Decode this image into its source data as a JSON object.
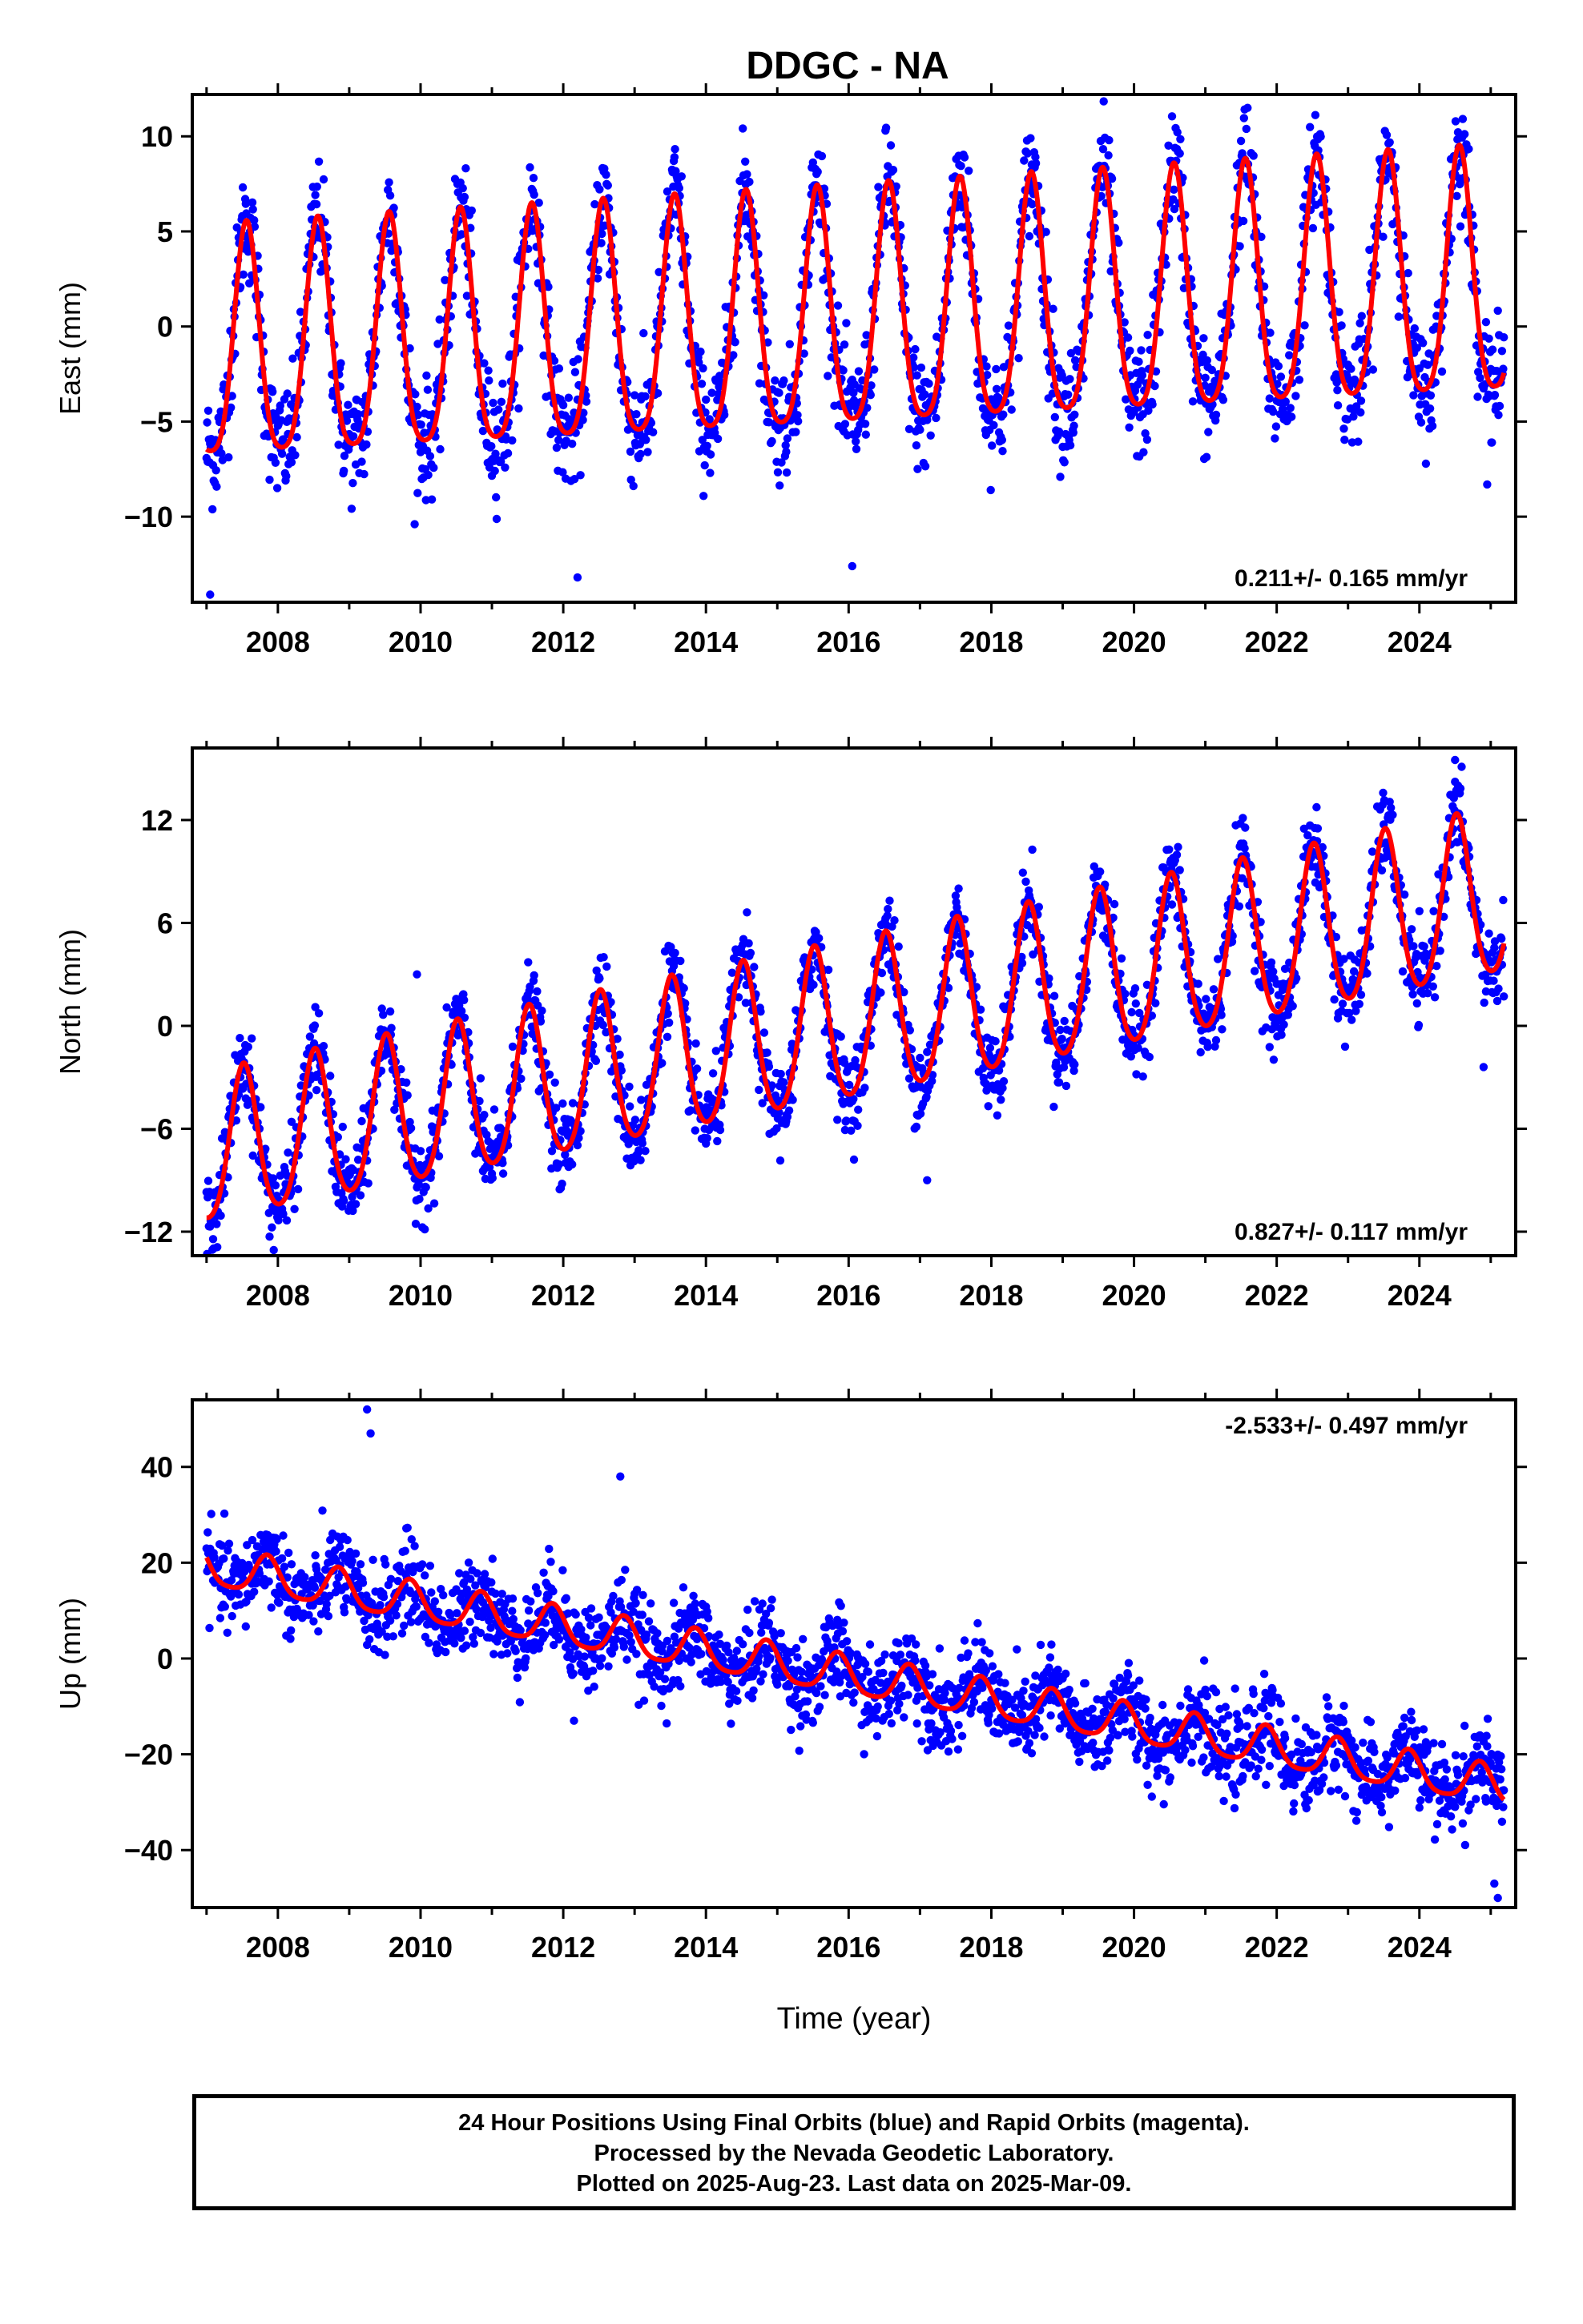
{
  "title": "DDGC - NA",
  "colors": {
    "data": "#0000ff",
    "model": "#ff0000",
    "axis": "#000000"
  },
  "x_axis": {
    "label": "Time (year)",
    "ticks": [
      2008,
      2010,
      2012,
      2014,
      2016,
      2018,
      2020,
      2022,
      2024
    ],
    "range": [
      2006.8,
      2025.35
    ]
  },
  "chart_data": [
    {
      "type": "scatter",
      "title": "",
      "ylabel": "East (mm)",
      "xlim": [
        2006.8,
        2025.35
      ],
      "ylim": [
        -14.5,
        12.2
      ],
      "yticks": [
        -10,
        -5,
        0,
        5,
        10
      ],
      "rate_label": "0.211+/- 0.165 mm/yr",
      "x_start": 2007.0,
      "x_end": 2025.19,
      "model": {
        "intercept": -1.75,
        "slope_mm_per_yr": 0.211,
        "annual_amplitude": 6.0,
        "annual_amplitude_end": 6.4,
        "semiannual_amplitude": 1.2,
        "peak_phase_year": 0.56
      },
      "noise_sd": 1.5,
      "outliers": [
        [
          2007.05,
          -14.1
        ],
        [
          2012.2,
          -13.2
        ],
        [
          2016.05,
          -12.6
        ]
      ],
      "series": [
        {
          "values_description_only": "daily positions"
        }
      ]
    },
    {
      "type": "scatter",
      "title": "",
      "ylabel": "North (mm)",
      "xlim": [
        2006.8,
        2025.35
      ],
      "ylim": [
        -13.4,
        16.2
      ],
      "yticks": [
        -12,
        -6,
        0,
        6,
        12
      ],
      "rate_label": "0.827+/- 0.117 mm/yr",
      "x_start": 2007.0,
      "x_end": 2025.19,
      "model": {
        "intercept": -7.5,
        "slope_mm_per_yr": 0.827,
        "annual_amplitude": 4.3,
        "annual_amplitude_end": 4.8,
        "semiannual_amplitude": 0.6,
        "peak_phase_year": 0.52
      },
      "noise_sd": 1.2,
      "outliers": [
        [
          2009.95,
          3.0
        ],
        [
          2017.1,
          -9.0
        ],
        [
          2024.9,
          -2.4
        ],
        [
          2024.5,
          15.5
        ]
      ],
      "series": [
        {
          "values_description_only": "daily positions"
        }
      ]
    },
    {
      "type": "scatter",
      "title": "",
      "ylabel": "Up (mm)",
      "xlim": [
        2006.8,
        2025.35
      ],
      "ylim": [
        -52.0,
        54.0
      ],
      "yticks": [
        -40,
        -20,
        0,
        20,
        40
      ],
      "rate_label": "-2.533+/- 0.497 mm/yr",
      "x_start": 2007.0,
      "x_end": 2025.19,
      "model": {
        "intercept": 19.0,
        "slope_mm_per_yr": -2.533,
        "annual_amplitude": 4.0,
        "annual_amplitude_end": 4.0,
        "semiannual_amplitude": 0.8,
        "peak_phase_year": 0.85
      },
      "noise_sd": 4.5,
      "outliers": [
        [
          2009.25,
          52.0
        ],
        [
          2009.3,
          47.0
        ],
        [
          2012.15,
          -13.0
        ],
        [
          2012.8,
          38.0
        ],
        [
          2025.1,
          -50.0
        ],
        [
          2025.05,
          -47.0
        ]
      ],
      "series": [
        {
          "values_description_only": "daily positions"
        }
      ]
    }
  ],
  "caption": {
    "line1": "24 Hour Positions Using Final Orbits (blue) and Rapid Orbits (magenta).",
    "line2": "Processed by the Nevada Geodetic Laboratory.",
    "line3": "Plotted on 2025-Aug-23. Last data on 2025-Mar-09."
  }
}
